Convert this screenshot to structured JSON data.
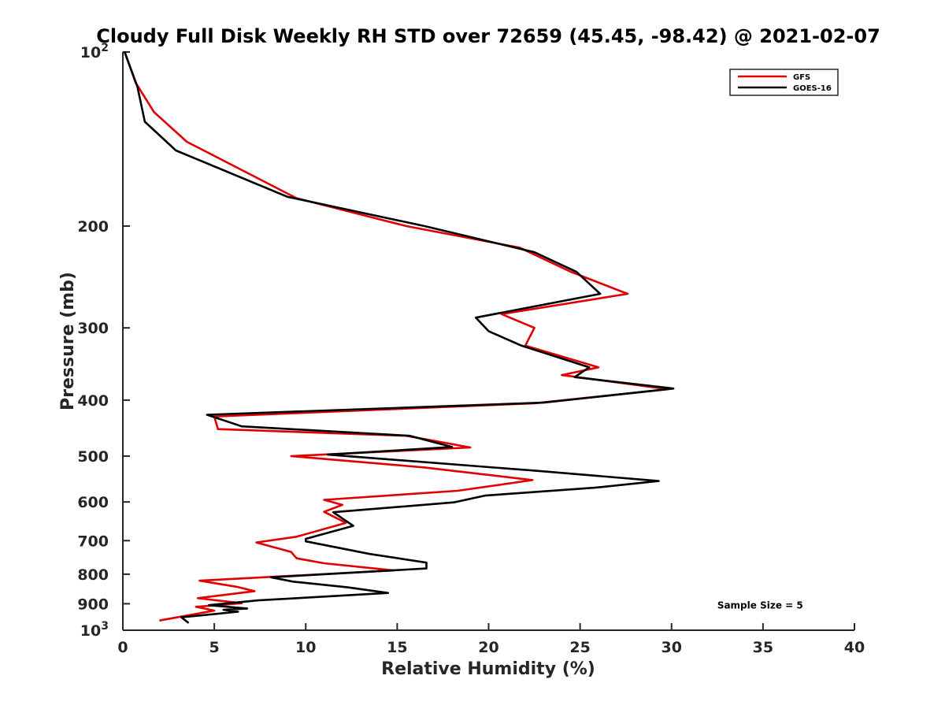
{
  "chart_data": {
    "type": "line",
    "title": "Cloudy Full Disk Weekly RH STD over 72659 (45.45, -98.42) @ 2021-02-07",
    "xlabel": "Relative Humidity (%)",
    "ylabel": "Pressure (mb)",
    "xlim": [
      0,
      40
    ],
    "ylim": [
      100,
      1000
    ],
    "y_scale": "log",
    "y_reversed": true,
    "xticks": [
      0,
      5,
      10,
      15,
      20,
      25,
      30,
      35,
      40
    ],
    "yticks": [
      {
        "value": 100,
        "base": "10",
        "exp": "2"
      },
      {
        "value": 200,
        "label": "200"
      },
      {
        "value": 300,
        "label": "300"
      },
      {
        "value": 400,
        "label": "400"
      },
      {
        "value": 500,
        "label": "500"
      },
      {
        "value": 600,
        "label": "600"
      },
      {
        "value": 700,
        "label": "700"
      },
      {
        "value": 800,
        "label": "800"
      },
      {
        "value": 900,
        "label": "900"
      },
      {
        "value": 1000,
        "base": "10",
        "exp": "3"
      }
    ],
    "grid": false,
    "legend_position": "top-right",
    "series": [
      {
        "name": "GFS",
        "color": "#e00000",
        "points": [
          [
            0.1,
            100
          ],
          [
            0.7,
            113
          ],
          [
            1.7,
            127
          ],
          [
            3.5,
            143
          ],
          [
            9.5,
            179
          ],
          [
            15.5,
            200
          ],
          [
            21.7,
            218
          ],
          [
            24.5,
            240
          ],
          [
            27.6,
            262
          ],
          [
            20.7,
            284
          ],
          [
            22.5,
            300
          ],
          [
            22.0,
            322
          ],
          [
            26.0,
            351
          ],
          [
            24.0,
            362
          ],
          [
            29.8,
            383
          ],
          [
            22.5,
            405
          ],
          [
            5.0,
            427
          ],
          [
            5.2,
            449
          ],
          [
            15.5,
            461
          ],
          [
            19.0,
            483
          ],
          [
            9.2,
            500
          ],
          [
            16.5,
            523
          ],
          [
            22.4,
            550
          ],
          [
            18.3,
            574
          ],
          [
            11.0,
            595
          ],
          [
            12.0,
            607
          ],
          [
            11.0,
            624
          ],
          [
            12.2,
            652
          ],
          [
            9.5,
            689
          ],
          [
            7.3,
            705
          ],
          [
            9.2,
            732
          ],
          [
            9.5,
            751
          ],
          [
            11.0,
            766
          ],
          [
            14.8,
            788
          ],
          [
            4.2,
            821
          ],
          [
            6.3,
            842
          ],
          [
            7.2,
            856
          ],
          [
            4.1,
            880
          ],
          [
            6.5,
            898
          ],
          [
            4.0,
            911
          ],
          [
            5.0,
            925
          ],
          [
            2.0,
            962
          ]
        ]
      },
      {
        "name": "GOES-16",
        "color": "#000000",
        "points": [
          [
            0.1,
            100
          ],
          [
            0.8,
            115
          ],
          [
            1.2,
            132
          ],
          [
            2.9,
            148
          ],
          [
            9.0,
            178
          ],
          [
            16.5,
            200
          ],
          [
            22.5,
            222
          ],
          [
            24.8,
            240
          ],
          [
            26.1,
            262
          ],
          [
            19.3,
            288
          ],
          [
            20.0,
            304
          ],
          [
            21.8,
            322
          ],
          [
            25.5,
            351
          ],
          [
            24.7,
            365
          ],
          [
            30.1,
            382
          ],
          [
            23.0,
            404
          ],
          [
            4.6,
            424
          ],
          [
            6.5,
            444
          ],
          [
            15.7,
            461
          ],
          [
            18.0,
            482
          ],
          [
            11.2,
            497
          ],
          [
            22.6,
            530
          ],
          [
            29.3,
            552
          ],
          [
            25.8,
            567
          ],
          [
            19.8,
            585
          ],
          [
            18.1,
            601
          ],
          [
            11.5,
            625
          ],
          [
            12.6,
            660
          ],
          [
            10.0,
            695
          ],
          [
            10.0,
            702
          ],
          [
            13.5,
            738
          ],
          [
            16.6,
            764
          ],
          [
            16.6,
            782
          ],
          [
            8.1,
            810
          ],
          [
            9.3,
            824
          ],
          [
            12.3,
            843
          ],
          [
            14.5,
            862
          ],
          [
            7.4,
            888
          ],
          [
            4.7,
            905
          ],
          [
            6.8,
            917
          ],
          [
            5.5,
            922
          ],
          [
            6.3,
            929
          ],
          [
            3.2,
            950
          ],
          [
            3.6,
            972
          ]
        ]
      }
    ],
    "annotations": [
      {
        "text": "Sample Size = 5",
        "x": 32.5,
        "y": 900
      }
    ]
  }
}
